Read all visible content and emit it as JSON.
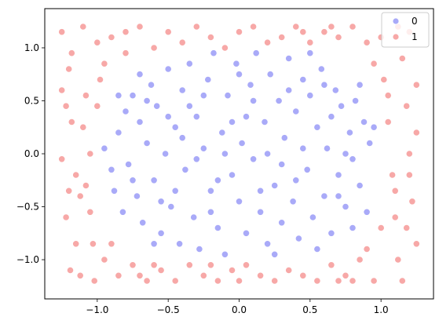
{
  "chart_data": {
    "type": "scatter",
    "title": "",
    "xlabel": "",
    "ylabel": "",
    "xlim": [
      -1.37,
      1.37
    ],
    "ylim": [
      -1.37,
      1.37
    ],
    "xticks": [
      -1.0,
      -0.5,
      0.0,
      0.5,
      1.0
    ],
    "xtick_labels": [
      "−1.0",
      "−0.5",
      "0.0",
      "0.5",
      "1.0"
    ],
    "yticks": [
      -1.0,
      -0.5,
      0.0,
      0.5,
      1.0
    ],
    "ytick_labels": [
      "−1.0",
      "−0.5",
      "0.0",
      "0.5",
      "1.0"
    ],
    "grid": false,
    "legend": {
      "placement": "top-right",
      "entries": [
        "0",
        "1"
      ]
    },
    "series": [
      {
        "name": "0",
        "color": "#a9aaf8",
        "points": [
          [
            -0.95,
            0.05
          ],
          [
            -0.88,
            -0.35
          ],
          [
            -0.85,
            0.2
          ],
          [
            -0.82,
            -0.55
          ],
          [
            -0.8,
            0.4
          ],
          [
            -0.78,
            -0.1
          ],
          [
            -0.75,
            0.55
          ],
          [
            -0.72,
            -0.4
          ],
          [
            -0.7,
            0.3
          ],
          [
            -0.68,
            -0.65
          ],
          [
            -0.65,
            0.1
          ],
          [
            -0.62,
            0.65
          ],
          [
            -0.6,
            -0.25
          ],
          [
            -0.58,
            0.45
          ],
          [
            -0.55,
            -0.75
          ],
          [
            -0.52,
            0.0
          ],
          [
            -0.5,
            0.8
          ],
          [
            -0.48,
            -0.5
          ],
          [
            -0.45,
            0.25
          ],
          [
            -0.42,
            -0.85
          ],
          [
            -0.4,
            0.6
          ],
          [
            -0.38,
            -0.15
          ],
          [
            -0.35,
            0.85
          ],
          [
            -0.32,
            -0.6
          ],
          [
            -0.3,
            0.35
          ],
          [
            -0.28,
            -0.9
          ],
          [
            -0.25,
            0.05
          ],
          [
            -0.22,
            0.7
          ],
          [
            -0.2,
            -0.35
          ],
          [
            -0.18,
            0.95
          ],
          [
            -0.15,
            -0.7
          ],
          [
            -0.12,
            0.2
          ],
          [
            -0.1,
            -0.95
          ],
          [
            -0.08,
            0.55
          ],
          [
            -0.05,
            -0.2
          ],
          [
            -0.02,
            0.85
          ],
          [
            0.0,
            -0.45
          ],
          [
            0.02,
            0.1
          ],
          [
            0.05,
            -0.75
          ],
          [
            0.08,
            0.65
          ],
          [
            0.1,
            -0.05
          ],
          [
            0.12,
            0.95
          ],
          [
            0.15,
            -0.55
          ],
          [
            0.18,
            0.3
          ],
          [
            0.2,
            -0.85
          ],
          [
            0.22,
            0.75
          ],
          [
            0.25,
            -0.3
          ],
          [
            0.28,
            0.5
          ],
          [
            0.3,
            -0.65
          ],
          [
            0.32,
            0.15
          ],
          [
            0.35,
            0.9
          ],
          [
            0.38,
            -0.45
          ],
          [
            0.4,
            0.4
          ],
          [
            0.42,
            -0.8
          ],
          [
            0.45,
            0.7
          ],
          [
            0.48,
            -0.15
          ],
          [
            0.5,
            0.55
          ],
          [
            0.52,
            -0.6
          ],
          [
            0.55,
            0.25
          ],
          [
            0.58,
            0.8
          ],
          [
            0.6,
            -0.4
          ],
          [
            0.62,
            0.05
          ],
          [
            0.65,
            -0.75
          ],
          [
            0.68,
            0.6
          ],
          [
            0.7,
            -0.2
          ],
          [
            0.72,
            0.45
          ],
          [
            0.75,
            -0.5
          ],
          [
            0.78,
            0.2
          ],
          [
            0.8,
            -0.05
          ],
          [
            0.82,
            0.5
          ],
          [
            0.85,
            -0.3
          ],
          [
            0.88,
            0.3
          ],
          [
            0.9,
            -0.55
          ],
          [
            0.92,
            0.1
          ],
          [
            -0.9,
            -0.15
          ],
          [
            -0.7,
            0.75
          ],
          [
            -0.55,
            -0.45
          ],
          [
            -0.35,
            0.45
          ],
          [
            -0.15,
            -0.25
          ],
          [
            0.05,
            0.35
          ],
          [
            0.25,
            -0.95
          ],
          [
            0.45,
            0.05
          ],
          [
            0.65,
            0.35
          ],
          [
            0.85,
            0.65
          ],
          [
            -0.6,
            -0.85
          ],
          [
            -0.4,
            0.15
          ],
          [
            -0.2,
            -0.55
          ],
          [
            0.0,
            0.75
          ],
          [
            0.2,
            0.0
          ],
          [
            0.4,
            -0.25
          ],
          [
            0.6,
            0.65
          ],
          [
            0.8,
            -0.7
          ],
          [
            -0.45,
            -0.35
          ],
          [
            -0.25,
            0.55
          ],
          [
            0.15,
            -0.35
          ],
          [
            0.35,
            0.6
          ],
          [
            0.55,
            -0.9
          ],
          [
            0.75,
            0.0
          ],
          [
            -0.65,
            0.5
          ],
          [
            -0.1,
            0.0
          ],
          [
            0.3,
            -0.1
          ],
          [
            -0.3,
            -0.05
          ],
          [
            -0.75,
            -0.25
          ],
          [
            0.7,
            -0.4
          ],
          [
            -0.5,
            0.35
          ],
          [
            0.1,
            0.5
          ],
          [
            -0.05,
            0.3
          ],
          [
            0.5,
            0.95
          ],
          [
            -0.85,
            0.55
          ],
          [
            0.95,
            0.25
          ]
        ]
      },
      {
        "name": "1",
        "color": "#f7a8a7",
        "points": [
          [
            -1.25,
            1.15
          ],
          [
            -1.2,
            0.8
          ],
          [
            -1.18,
            0.3
          ],
          [
            -1.15,
            -0.2
          ],
          [
            -1.22,
            -0.6
          ],
          [
            -1.19,
            -1.1
          ],
          [
            -1.1,
            1.2
          ],
          [
            -1.08,
            0.55
          ],
          [
            -1.05,
            0.0
          ],
          [
            -1.12,
            -0.4
          ],
          [
            -1.03,
            -0.85
          ],
          [
            -1.0,
            1.05
          ],
          [
            -0.98,
            0.7
          ],
          [
            -1.02,
            -1.2
          ],
          [
            -0.95,
            -1.0
          ],
          [
            -0.9,
            1.1
          ],
          [
            -0.85,
            -1.15
          ],
          [
            -0.8,
            0.95
          ],
          [
            -0.75,
            -1.05
          ],
          [
            -0.7,
            1.2
          ],
          [
            -0.65,
            -1.2
          ],
          [
            -0.6,
            1.0
          ],
          [
            -0.55,
            -1.1
          ],
          [
            -0.5,
            1.15
          ],
          [
            -0.45,
            -1.2
          ],
          [
            -0.4,
            1.05
          ],
          [
            -0.35,
            -1.05
          ],
          [
            -0.3,
            1.2
          ],
          [
            -0.25,
            -1.15
          ],
          [
            -0.2,
            1.1
          ],
          [
            -0.15,
            -1.2
          ],
          [
            -0.1,
            1.0
          ],
          [
            -0.05,
            -1.1
          ],
          [
            0.0,
            1.15
          ],
          [
            0.05,
            -1.05
          ],
          [
            0.1,
            1.2
          ],
          [
            0.15,
            -1.15
          ],
          [
            0.2,
            1.05
          ],
          [
            0.25,
            -1.2
          ],
          [
            0.3,
            1.1
          ],
          [
            0.35,
            -1.1
          ],
          [
            0.4,
            1.2
          ],
          [
            0.45,
            -1.15
          ],
          [
            0.5,
            1.05
          ],
          [
            0.55,
            -1.2
          ],
          [
            0.6,
            1.15
          ],
          [
            0.65,
            -1.05
          ],
          [
            0.7,
            1.1
          ],
          [
            0.75,
            -1.15
          ],
          [
            0.8,
            1.2
          ],
          [
            0.85,
            -1.0
          ],
          [
            0.9,
            1.05
          ],
          [
            0.95,
            -1.2
          ],
          [
            1.0,
            1.1
          ],
          [
            1.02,
            0.7
          ],
          [
            1.05,
            0.3
          ],
          [
            1.08,
            -0.2
          ],
          [
            1.1,
            -0.6
          ],
          [
            1.12,
            -1.0
          ],
          [
            1.15,
            0.9
          ],
          [
            1.18,
            0.45
          ],
          [
            1.2,
            0.0
          ],
          [
            1.22,
            -0.45
          ],
          [
            1.25,
            -0.85
          ],
          [
            1.2,
            1.15
          ],
          [
            1.15,
            -1.2
          ],
          [
            -1.22,
            0.45
          ],
          [
            -1.25,
            -0.05
          ],
          [
            -1.15,
            -0.85
          ],
          [
            -1.1,
            0.25
          ],
          [
            -1.05,
            -0.55
          ],
          [
            -1.18,
            0.95
          ],
          [
            1.05,
            0.55
          ],
          [
            1.1,
            -0.35
          ],
          [
            1.25,
            0.65
          ],
          [
            1.18,
            -0.7
          ],
          [
            -1.08,
            -0.3
          ],
          [
            -0.95,
            0.85
          ],
          [
            0.95,
            0.85
          ],
          [
            -0.9,
            -0.85
          ],
          [
            0.9,
            -0.9
          ],
          [
            -0.8,
            1.15
          ],
          [
            0.8,
            -1.2
          ],
          [
            -1.25,
            0.6
          ],
          [
            1.25,
            0.2
          ],
          [
            -1.2,
            -0.35
          ],
          [
            1.2,
            -0.2
          ],
          [
            -0.6,
            -1.05
          ],
          [
            0.65,
            1.2
          ],
          [
            0.0,
            -1.2
          ],
          [
            -0.2,
            -1.05
          ],
          [
            0.45,
            1.15
          ],
          [
            -1.12,
            -1.15
          ],
          [
            1.12,
            1.2
          ],
          [
            -0.7,
            -1.15
          ],
          [
            0.7,
            -1.2
          ],
          [
            -1.0,
            0.45
          ],
          [
            1.0,
            -0.7
          ]
        ]
      }
    ]
  }
}
